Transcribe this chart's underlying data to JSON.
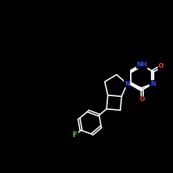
{
  "background_color": "#000000",
  "bond_color": "#ffffff",
  "atom_colors": {
    "N": "#4444ff",
    "O": "#ff4444",
    "F": "#44cc44",
    "C": "#ffffff"
  },
  "figsize": [
    2.5,
    2.5
  ],
  "dpi": 100,
  "lw": 1.3,
  "fs": 6.5
}
